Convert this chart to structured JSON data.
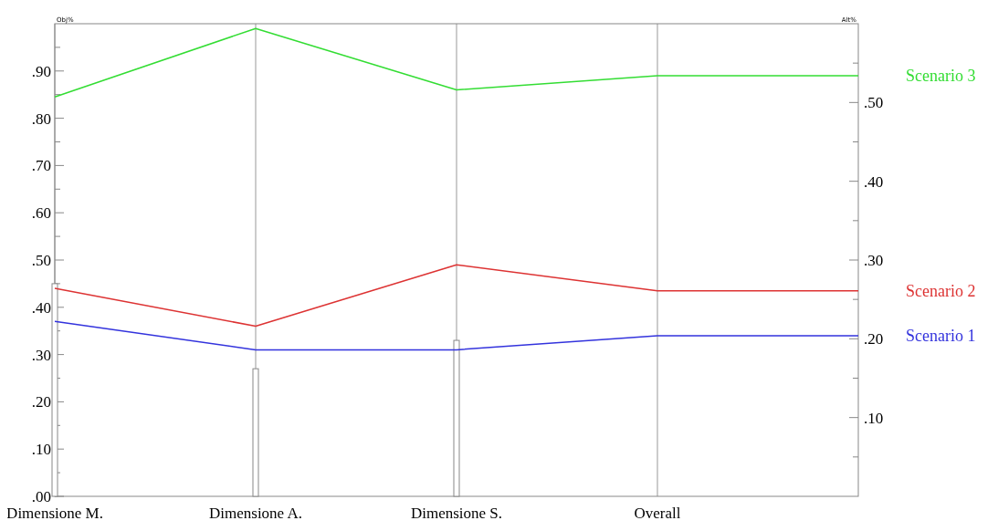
{
  "chart_data": {
    "type": "line",
    "ylabel": "Obj%",
    "y2label": "Alt%",
    "categories": [
      "Dimensione M.",
      "Dimensione A.",
      "Dimensione S.",
      "Overall",
      null
    ],
    "ylim": [
      0,
      1
    ],
    "yticks": [
      {
        "value": 0,
        "label": ".00"
      },
      {
        "value": 0.05,
        "label": null
      },
      {
        "value": 0.1,
        "label": ".10"
      },
      {
        "value": 0.15,
        "label": null
      },
      {
        "value": 0.2,
        "label": ".20"
      },
      {
        "value": 0.25,
        "label": null
      },
      {
        "value": 0.3,
        "label": ".30"
      },
      {
        "value": 0.35,
        "label": null
      },
      {
        "value": 0.4,
        "label": ".40"
      },
      {
        "value": 0.45,
        "label": null
      },
      {
        "value": 0.5,
        "label": ".50"
      },
      {
        "value": 0.55,
        "label": null
      },
      {
        "value": 0.6,
        "label": ".60"
      },
      {
        "value": 0.65,
        "label": null
      },
      {
        "value": 0.7,
        "label": ".70"
      },
      {
        "value": 0.75,
        "label": null
      },
      {
        "value": 0.8,
        "label": ".80"
      },
      {
        "value": 0.85,
        "label": null
      },
      {
        "value": 0.9,
        "label": ".90"
      },
      {
        "value": 0.95,
        "label": null
      }
    ],
    "y2lim": [
      0,
      0.6
    ],
    "y2ticks": [
      {
        "value": 0.05,
        "label": null
      },
      {
        "value": 0.1,
        "label": ".10"
      },
      {
        "value": 0.15,
        "label": null
      },
      {
        "value": 0.2,
        "label": ".20"
      },
      {
        "value": 0.25,
        "label": null
      },
      {
        "value": 0.3,
        "label": ".30"
      },
      {
        "value": 0.35,
        "label": null
      },
      {
        "value": 0.4,
        "label": ".40"
      },
      {
        "value": 0.45,
        "label": null
      },
      {
        "value": 0.5,
        "label": ".50"
      },
      {
        "value": 0.55,
        "label": null
      }
    ],
    "grid": "x",
    "series": [
      {
        "type": "bar",
        "color": "#ffffff",
        "values": [
          0.45,
          0.27,
          0.33,
          null,
          null
        ]
      },
      {
        "name": "Scenario 1",
        "color": "#3333dd",
        "values": [
          0.37,
          0.31,
          0.31,
          0.34,
          0.34
        ]
      },
      {
        "name": "Scenario 2",
        "color": "#dd3333",
        "values": [
          0.44,
          0.36,
          0.49,
          0.435,
          0.435
        ]
      },
      {
        "name": "Scenario 3",
        "color": "#33dd33",
        "values": [
          0.845,
          0.99,
          0.86,
          0.89,
          0.89
        ]
      }
    ]
  }
}
